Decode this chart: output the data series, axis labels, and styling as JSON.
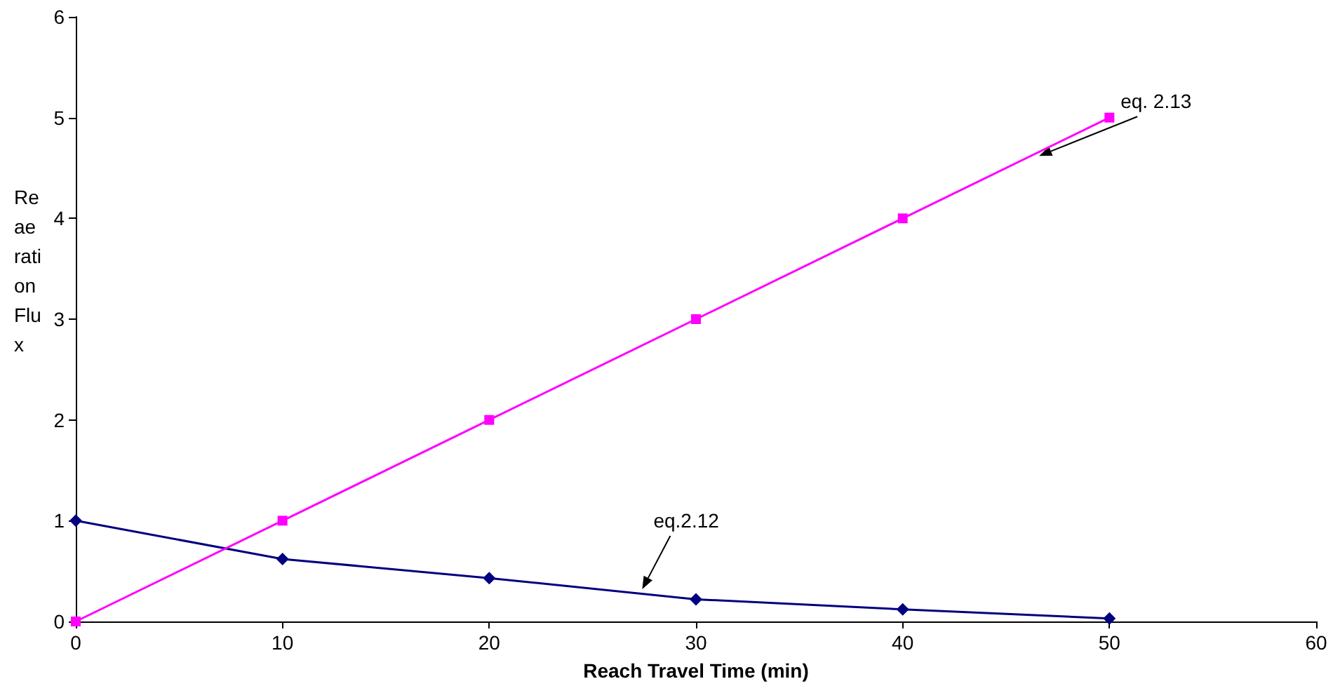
{
  "chart_data": {
    "type": "line",
    "xlabel": "Reach Travel Time (min)",
    "ylabel": "Reaeration Flux",
    "x": [
      0,
      10,
      20,
      30,
      40,
      50
    ],
    "series": [
      {
        "color": "#000080",
        "marker": "diamond",
        "values": [
          1,
          0.62,
          0.43,
          0.22,
          0.12,
          0.03
        ]
      },
      {
        "color": "#ff00ff",
        "marker": "square",
        "values": [
          0,
          1,
          2,
          3,
          4,
          5
        ]
      }
    ],
    "annotations": [
      {
        "text": "eq.2.12",
        "x": 27.4,
        "y": 0.32
      },
      {
        "text": "eq. 2.13",
        "x": 46.6,
        "y": 4.62
      }
    ],
    "xlim": [
      0,
      60
    ],
    "xticks": [
      0,
      10,
      20,
      30,
      40,
      50,
      60
    ],
    "ylim": [
      0,
      6
    ],
    "yticks": [
      0,
      1,
      2,
      3,
      4,
      5,
      6
    ],
    "grid": false
  }
}
